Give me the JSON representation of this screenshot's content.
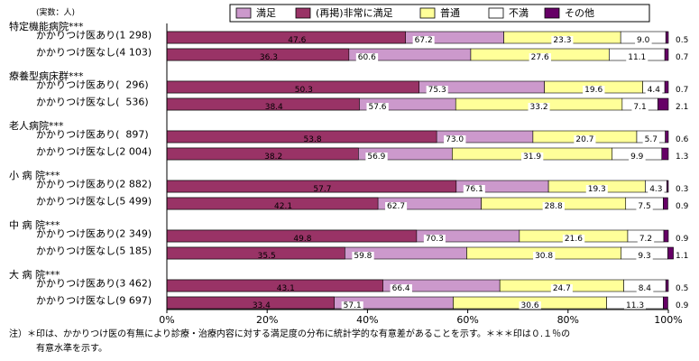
{
  "chart_data": {
    "type": "bar",
    "orientation": "horizontal",
    "unit_label": "(実数：人)",
    "groups": [
      "特定機能病院***",
      "療養型病床群***",
      "老人病院***",
      "小 病 院***",
      "中 病 院***",
      "大 病 院***"
    ],
    "categories": [
      "かかりつけ医あり(1 298)",
      "かかりつけ医なし(4 103)",
      "かかりつけ医あり(  296)",
      "かかりつけ医なし(  536)",
      "かかりつけ医あり(  897)",
      "かかりつけ医なし(2 004)",
      "かかりつけ医あり(2 882)",
      "かかりつけ医なし(5 499)",
      "かかりつけ医あり(2 349)",
      "かかりつけ医なし(5 185)",
      "かかりつけ医あり(3 462)",
      "かかりつけ医なし(9 697)"
    ],
    "series": [
      {
        "name": "満足",
        "color": "#cc99cc",
        "values": [
          67.2,
          60.6,
          75.3,
          57.6,
          73.0,
          56.9,
          76.1,
          62.7,
          70.3,
          59.8,
          66.4,
          57.1
        ],
        "value_labels": [
          "67.2",
          "60.6",
          "75.3",
          "57.6",
          "73.0",
          "56.9",
          "76.1",
          "62.7",
          "70.3",
          "59.8",
          "66.4",
          "57.1"
        ]
      },
      {
        "name": "(再掲)非常に満足",
        "color": "#993366",
        "overlay": true,
        "values": [
          47.6,
          36.3,
          50.3,
          38.4,
          53.8,
          38.2,
          57.7,
          42.1,
          49.8,
          35.5,
          43.1,
          33.4
        ]
      },
      {
        "name": "普通",
        "color": "#ffff99",
        "values": [
          23.3,
          27.6,
          19.6,
          33.2,
          20.7,
          31.9,
          19.3,
          28.8,
          21.6,
          30.8,
          24.7,
          30.6
        ]
      },
      {
        "name": "不満",
        "color": "#ffffff",
        "values": [
          9.0,
          11.1,
          4.4,
          7.1,
          5.7,
          9.9,
          4.3,
          7.5,
          7.2,
          9.3,
          8.4,
          11.3
        ],
        "value_labels": [
          "9.0",
          "11.1",
          "4.4",
          "7.1",
          "5.7",
          "9.9",
          "4.3",
          "7.5",
          "7.2",
          "9.3",
          "8.4",
          "11.3"
        ]
      },
      {
        "name": "その他",
        "color": "#660066",
        "values": [
          0.5,
          0.7,
          0.7,
          2.1,
          0.6,
          1.3,
          0.3,
          0.9,
          0.9,
          1.1,
          0.5,
          0.9
        ]
      }
    ],
    "xlim": [
      0,
      100
    ],
    "xticks": [
      {
        "value": 0,
        "label": "0%"
      },
      {
        "value": 20,
        "label": "20%"
      },
      {
        "value": 40,
        "label": "40%"
      },
      {
        "value": 60,
        "label": "60%"
      },
      {
        "value": 80,
        "label": "80%"
      },
      {
        "value": 100,
        "label": "100%"
      }
    ],
    "footnote": [
      "注）＊印は、かかりつけ医の有無により診療・治療内容に対する満足度の分布に統計学的な有意差があることを示す。＊＊＊印は０.１％の",
      "有意水準を示す。"
    ]
  }
}
